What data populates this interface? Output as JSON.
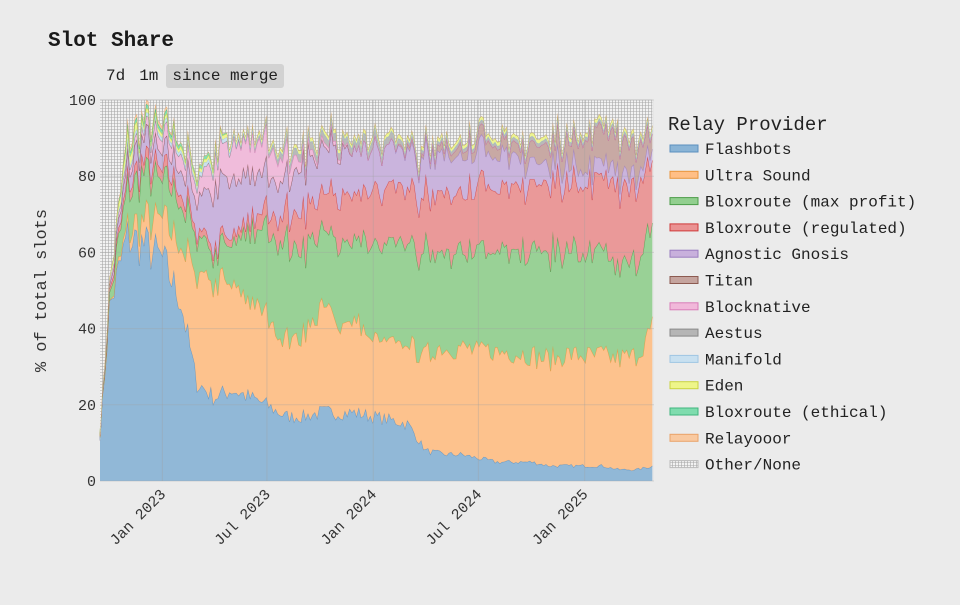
{
  "page_title": "Slot Share",
  "time_ranges": [
    {
      "label": "7d",
      "active": false
    },
    {
      "label": "1m",
      "active": false
    },
    {
      "label": "since merge",
      "active": true
    }
  ],
  "chart_data": {
    "type": "area",
    "stacked": true,
    "title": "Slot Share",
    "xlabel": "",
    "ylabel": "% of total slots",
    "ylim": [
      0,
      100
    ],
    "yticks": [
      0,
      20,
      40,
      60,
      80,
      100
    ],
    "xlim": [
      "2022-09-15",
      "2025-05-01"
    ],
    "xticks": [
      {
        "date": "2023-01-01",
        "label": "Jan 2023"
      },
      {
        "date": "2023-07-01",
        "label": "Jul 2023"
      },
      {
        "date": "2024-01-01",
        "label": "Jan 2024"
      },
      {
        "date": "2024-07-01",
        "label": "Jul 2024"
      },
      {
        "date": "2025-01-01",
        "label": "Jan 2025"
      }
    ],
    "grid": true,
    "legend": {
      "title": "Relay Provider",
      "position": "right"
    },
    "x": [
      "2022-09-15",
      "2022-10-01",
      "2022-11-01",
      "2022-12-01",
      "2023-01-01",
      "2023-02-01",
      "2023-03-01",
      "2023-04-01",
      "2023-05-01",
      "2023-06-01",
      "2023-07-01",
      "2023-08-01",
      "2023-09-01",
      "2023-10-01",
      "2023-11-01",
      "2023-12-01",
      "2024-01-01",
      "2024-02-01",
      "2024-03-01",
      "2024-04-01",
      "2024-05-01",
      "2024-06-01",
      "2024-07-01",
      "2024-08-01",
      "2024-09-01",
      "2024-10-01",
      "2024-11-01",
      "2024-12-01",
      "2025-01-01",
      "2025-02-01",
      "2025-03-01",
      "2025-04-01",
      "2025-05-01"
    ],
    "series": [
      {
        "name": "Flashbots",
        "color": "#8ab4d6",
        "line": "#5b8fbf",
        "values": [
          12,
          45,
          64,
          62,
          58,
          48,
          26,
          22,
          24,
          22,
          20,
          17,
          17,
          18,
          18,
          18,
          17,
          16,
          15,
          8,
          7,
          7,
          6,
          5,
          5,
          5,
          4,
          4,
          4,
          4,
          3,
          3,
          4
        ]
      },
      {
        "name": "Ultra Sound",
        "color": "#ffbf86",
        "line": "#e8953c",
        "values": [
          0,
          0,
          2,
          6,
          10,
          14,
          28,
          30,
          28,
          25,
          23,
          20,
          22,
          26,
          25,
          24,
          20,
          20,
          21,
          25,
          28,
          28,
          28,
          29,
          29,
          28,
          28,
          29,
          29,
          29,
          29,
          30,
          37
        ]
      },
      {
        "name": "Bloxroute (max profit)",
        "color": "#92cf8f",
        "line": "#4c9d49",
        "values": [
          0,
          2,
          10,
          12,
          10,
          12,
          10,
          8,
          10,
          18,
          22,
          25,
          22,
          20,
          20,
          22,
          25,
          26,
          25,
          28,
          26,
          25,
          25,
          27,
          27,
          28,
          28,
          28,
          27,
          25,
          26,
          25,
          26
        ]
      },
      {
        "name": "Bloxroute (regulated)",
        "color": "#ea9292",
        "line": "#cf3a3a",
        "values": [
          0,
          1,
          2,
          3,
          3,
          3,
          2,
          2,
          2,
          3,
          5,
          8,
          10,
          10,
          12,
          12,
          14,
          14,
          15,
          15,
          15,
          16,
          17,
          16,
          17,
          18,
          18,
          18,
          18,
          19,
          20,
          20,
          18
        ]
      },
      {
        "name": "Agnostic Gnosis",
        "color": "#c8b0dc",
        "line": "#9a7cbf",
        "values": [
          0,
          1,
          4,
          6,
          4,
          6,
          8,
          15,
          15,
          12,
          10,
          9,
          12,
          12,
          12,
          11,
          11,
          11,
          10,
          10,
          10,
          10,
          9,
          9,
          8,
          6,
          5,
          5,
          4,
          4,
          4,
          3,
          3
        ]
      },
      {
        "name": "Titan",
        "color": "#c5a49e",
        "line": "#8c5a50",
        "values": [
          0,
          0,
          0,
          0,
          0,
          0,
          0,
          0,
          0,
          0,
          0,
          0,
          0,
          0,
          0,
          0,
          0,
          0,
          1,
          1,
          2,
          2,
          3,
          3,
          3,
          4,
          5,
          6,
          8,
          9,
          9,
          8,
          4
        ]
      },
      {
        "name": "Blocknative",
        "color": "#f1b8da",
        "line": "#d97cb8",
        "values": [
          0,
          1,
          2,
          2,
          4,
          4,
          4,
          8,
          9,
          9,
          8,
          6,
          2,
          1,
          1,
          0,
          0,
          0,
          0,
          0,
          0,
          0,
          0,
          0,
          0,
          0,
          0,
          0,
          0,
          0,
          0,
          0,
          0
        ]
      },
      {
        "name": "Aestus",
        "color": "#b5b5b5",
        "line": "#888888",
        "values": [
          0,
          0,
          0,
          0,
          0,
          0,
          0,
          0,
          0,
          1,
          1,
          2,
          2,
          2,
          2,
          2,
          2,
          2,
          1,
          1,
          1,
          1,
          1,
          1,
          1,
          1,
          1,
          1,
          1,
          1,
          1,
          1,
          1
        ]
      },
      {
        "name": "Manifold",
        "color": "#c8e0f0",
        "line": "#9fc6e3",
        "values": [
          0,
          0,
          1,
          1,
          1,
          1,
          1,
          1,
          1,
          0,
          0,
          0,
          0,
          0,
          0,
          0,
          0,
          0,
          0,
          0,
          0,
          0,
          0,
          0,
          0,
          0,
          0,
          0,
          0,
          0,
          0,
          0,
          0
        ]
      },
      {
        "name": "Eden",
        "color": "#eef58a",
        "line": "#c9d342",
        "values": [
          1,
          1,
          3,
          1,
          1,
          1,
          1,
          1,
          1,
          1,
          1,
          1,
          1,
          1,
          1,
          1,
          1,
          1,
          1,
          1,
          1,
          1,
          1,
          1,
          1,
          1,
          1,
          1,
          1,
          1,
          1,
          1,
          1
        ]
      },
      {
        "name": "Bloxroute (ethical)",
        "color": "#7fdcae",
        "line": "#3fb67e",
        "values": [
          0,
          0,
          1,
          1,
          1,
          1,
          1,
          1,
          0,
          0,
          0,
          0,
          0,
          0,
          0,
          0,
          0,
          0,
          0,
          0,
          0,
          0,
          0,
          0,
          0,
          0,
          0,
          0,
          0,
          0,
          0,
          0,
          0
        ]
      },
      {
        "name": "Relayooor",
        "color": "#f9c9a0",
        "line": "#e9a36a",
        "values": [
          0,
          0,
          1,
          1,
          1,
          0,
          0,
          0,
          0,
          0,
          0,
          0,
          0,
          0,
          0,
          0,
          0,
          0,
          0,
          0,
          0,
          0,
          0,
          0,
          0,
          0,
          0,
          0,
          0,
          0,
          0,
          0,
          0
        ]
      },
      {
        "name": "Other/None",
        "color": "grid",
        "line": "#bbbbbb",
        "values": [
          87,
          49,
          10,
          5,
          6,
          10,
          20,
          12,
          10,
          9,
          10,
          12,
          12,
          10,
          9,
          10,
          10,
          10,
          11,
          11,
          10,
          10,
          11,
          9,
          9,
          9,
          10,
          8,
          8,
          8,
          8,
          9,
          6
        ]
      }
    ]
  }
}
